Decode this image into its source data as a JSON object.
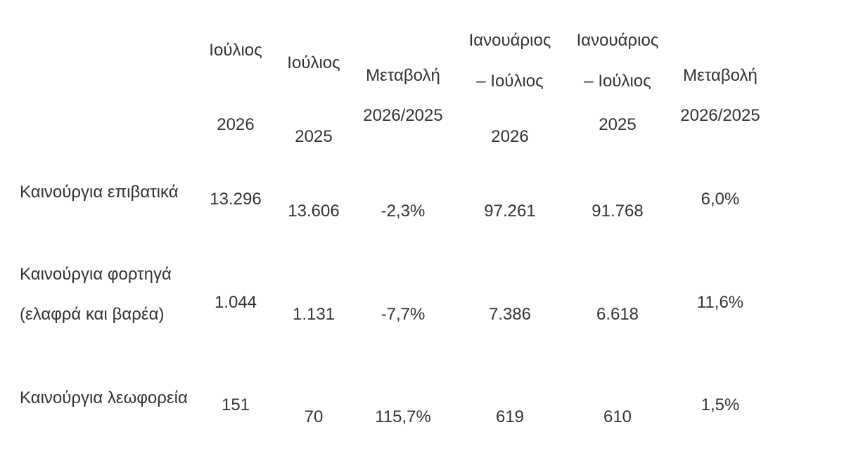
{
  "table": {
    "headers": [
      [
        "Ιούλιος",
        "2026"
      ],
      [
        "Ιούλιος",
        "2025"
      ],
      [
        "Μεταβολή",
        "2026/2025"
      ],
      [
        "Ιανουάριος",
        "– Ιούλιος",
        "2026"
      ],
      [
        "Ιανουάριος",
        "– Ιούλιος",
        "2025"
      ],
      [
        "Μεταβολή",
        "2026/2025"
      ]
    ],
    "rows": [
      {
        "label": "Καινούργια επιβατικά",
        "cells": [
          "13.296",
          "13.606",
          "-2,3%",
          "97.261",
          "91.768",
          "6,0%"
        ]
      },
      {
        "label": "Καινούργια φορτηγά (ελαφρά και βαρέα)",
        "cells": [
          "1.044",
          "1.131",
          "-7,7%",
          "7.386",
          "6.618",
          "11,6%"
        ]
      },
      {
        "label": "Καινούργια λεωφορεία",
        "cells": [
          "151",
          "70",
          "115,7%",
          "619",
          "610",
          "1,5%"
        ]
      }
    ]
  }
}
